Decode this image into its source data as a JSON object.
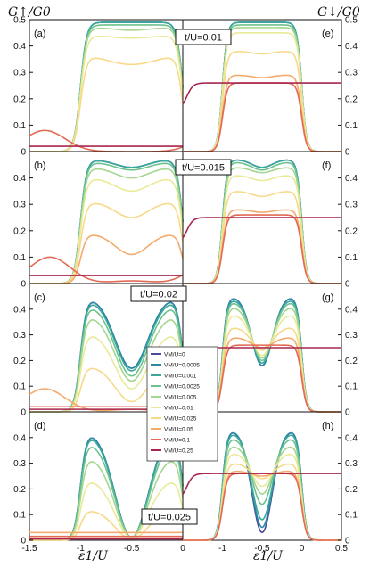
{
  "chart_data": {
    "type": "line",
    "ylabel_left": "G↑/G0",
    "ylabel_right": "G↓/G0",
    "xlabel": "ε1/U",
    "legend": {
      "placement": "center",
      "entries": [
        "VM/U=0",
        "VM/U=0.0005",
        "VM/U=0.001",
        "VM/U=0.0025",
        "VM/U=0.005",
        "VM/U=0.01",
        "VM/U=0.025",
        "VM/U=0.05",
        "VM/U=0.1",
        "VM/U=0.25"
      ],
      "colors": [
        "#4a4a9c",
        "#2a8aa6",
        "#3aa89a",
        "#6cc28e",
        "#a4d690",
        "#e9ea98",
        "#f7d98a",
        "#f5aa6c",
        "#e26a55",
        "#a8264e"
      ]
    },
    "yticks_label_row": [
      "0",
      "0.1",
      "0.2",
      "0.3",
      "0.4"
    ],
    "yticks_label_top": [
      "0",
      "0.1",
      "0.2",
      "0.3",
      "0.4",
      "0.5"
    ],
    "xticks_left": [
      "-1.5",
      "-1",
      "-0.5",
      "0"
    ],
    "xticks_right": [
      "-1.5",
      "-1",
      "-0.5",
      "0",
      "0.5"
    ],
    "rows": [
      {
        "hopping": "t/U=0.01",
        "left": {
          "label": "(a)",
          "ylim": [
            0,
            0.5
          ],
          "xlim": [
            -1.5,
            0
          ],
          "shape": "single",
          "series": [
            {
              "name": "VM/U=0",
              "plateau": 0.49,
              "dip": 0.49,
              "width": 0.15
            },
            {
              "name": "VM/U=0.0005",
              "plateau": 0.49,
              "dip": 0.49,
              "width": 0.15
            },
            {
              "name": "VM/U=0.001",
              "plateau": 0.49,
              "dip": 0.49,
              "width": 0.15
            },
            {
              "name": "VM/U=0.0025",
              "plateau": 0.48,
              "dip": 0.48,
              "width": 0.16
            },
            {
              "name": "VM/U=0.005",
              "plateau": 0.47,
              "dip": 0.46,
              "width": 0.17
            },
            {
              "name": "VM/U=0.01",
              "plateau": 0.44,
              "dip": 0.43,
              "width": 0.19
            },
            {
              "name": "VM/U=0.025",
              "plateau": 0.37,
              "dip": 0.33,
              "width": 0.24
            },
            {
              "name": "VM/U=0.05",
              "peaks": [
                -1.0,
                0.17,
                0.0,
                -0.5,
                0.01
              ],
              "outer": 0.08
            },
            {
              "name": "VM/U=0.1",
              "peaks": [
                -1.35,
                0.08,
                -0.5,
                0.0
              ],
              "outer": 0.04
            },
            {
              "name": "VM/U=0.25",
              "flat": 0.02
            }
          ]
        },
        "right": {
          "label": "(e)",
          "ylim": [
            0,
            0.5
          ],
          "xlim": [
            -1.5,
            0.5
          ],
          "series": [
            {
              "name": "VM/U=0",
              "plateau": 0.49,
              "dip": 0.49
            },
            {
              "name": "VM/U=0.0005",
              "plateau": 0.49,
              "dip": 0.49
            },
            {
              "name": "VM/U=0.001",
              "plateau": 0.49,
              "dip": 0.49
            },
            {
              "name": "VM/U=0.0025",
              "plateau": 0.48,
              "dip": 0.48
            },
            {
              "name": "VM/U=0.005",
              "plateau": 0.47,
              "dip": 0.47
            },
            {
              "name": "VM/U=0.01",
              "plateau": 0.45,
              "dip": 0.45
            },
            {
              "name": "VM/U=0.025",
              "plateau": 0.38,
              "dip": 0.37
            },
            {
              "name": "VM/U=0.05",
              "plateau": 0.29,
              "dip": 0.28
            },
            {
              "name": "VM/U=0.1",
              "plateau": 0.26,
              "dip": 0.26
            },
            {
              "name": "VM/U=0.25",
              "flat": 0.26
            }
          ]
        }
      },
      {
        "hopping": "t/U=0.015",
        "left": {
          "label": "(b)",
          "ylim": [
            0,
            0.5
          ],
          "xlim": [
            -1.5,
            0
          ],
          "series": [
            {
              "name": "VM/U=0",
              "plateau": 0.47,
              "dip": 0.44
            },
            {
              "name": "VM/U=0.0005",
              "plateau": 0.47,
              "dip": 0.44
            },
            {
              "name": "VM/U=0.001",
              "plateau": 0.47,
              "dip": 0.44
            },
            {
              "name": "VM/U=0.0025",
              "plateau": 0.46,
              "dip": 0.43
            },
            {
              "name": "VM/U=0.005",
              "plateau": 0.44,
              "dip": 0.4
            },
            {
              "name": "VM/U=0.01",
              "plateau": 0.4,
              "dip": 0.35
            },
            {
              "name": "VM/U=0.025",
              "plateau": 0.31,
              "dip": 0.25
            },
            {
              "name": "VM/U=0.05",
              "plateau": 0.19,
              "dip": 0.11
            },
            {
              "name": "VM/U=0.1",
              "peaks": [
                -1.3,
                0.1,
                -0.5,
                0.01
              ],
              "outer": 0.05
            },
            {
              "name": "VM/U=0.25",
              "flat": 0.03
            }
          ]
        },
        "right": {
          "label": "(f)",
          "ylim": [
            0,
            0.5
          ],
          "xlim": [
            -1.5,
            0.5
          ],
          "series": [
            {
              "name": "VM/U=0",
              "plateau": 0.47,
              "dip": 0.44
            },
            {
              "name": "VM/U=0.0005",
              "plateau": 0.47,
              "dip": 0.44
            },
            {
              "name": "VM/U=0.001",
              "plateau": 0.47,
              "dip": 0.44
            },
            {
              "name": "VM/U=0.0025",
              "plateau": 0.46,
              "dip": 0.43
            },
            {
              "name": "VM/U=0.005",
              "plateau": 0.44,
              "dip": 0.42
            },
            {
              "name": "VM/U=0.01",
              "plateau": 0.41,
              "dip": 0.39
            },
            {
              "name": "VM/U=0.025",
              "plateau": 0.35,
              "dip": 0.33
            },
            {
              "name": "VM/U=0.05",
              "plateau": 0.28,
              "dip": 0.27
            },
            {
              "name": "VM/U=0.1",
              "plateau": 0.26,
              "dip": 0.26
            },
            {
              "name": "VM/U=0.25",
              "flat": 0.25
            }
          ]
        }
      },
      {
        "hopping": "t/U=0.02",
        "left": {
          "label": "(c)",
          "ylim": [
            0,
            0.5
          ],
          "xlim": [
            -1.5,
            0
          ],
          "series": [
            {
              "name": "VM/U=0",
              "plateau": 0.45,
              "dip": 0.17
            },
            {
              "name": "VM/U=0.0005",
              "plateau": 0.45,
              "dip": 0.17
            },
            {
              "name": "VM/U=0.001",
              "plateau": 0.44,
              "dip": 0.16
            },
            {
              "name": "VM/U=0.0025",
              "plateau": 0.42,
              "dip": 0.14
            },
            {
              "name": "VM/U=0.005",
              "plateau": 0.38,
              "dip": 0.12
            },
            {
              "name": "VM/U=0.01",
              "plateau": 0.31,
              "dip": 0.09
            },
            {
              "name": "VM/U=0.025",
              "plateau": 0.18,
              "dip": 0.04
            },
            {
              "name": "VM/U=0.05",
              "peaks": [
                -1.35,
                0.09,
                -0.5,
                0.01
              ],
              "outer": 0.05
            },
            {
              "name": "VM/U=0.1",
              "flat": 0.02
            },
            {
              "name": "VM/U=0.25",
              "flat": 0.01
            }
          ]
        },
        "right": {
          "label": "(g)",
          "ylim": [
            0,
            0.5
          ],
          "xlim": [
            -1.5,
            0.5
          ],
          "series": [
            {
              "name": "VM/U=0",
              "plateau": 0.45,
              "dip": 0.18
            },
            {
              "name": "VM/U=0.0005",
              "plateau": 0.45,
              "dip": 0.18
            },
            {
              "name": "VM/U=0.001",
              "plateau": 0.44,
              "dip": 0.19
            },
            {
              "name": "VM/U=0.0025",
              "plateau": 0.43,
              "dip": 0.2
            },
            {
              "name": "VM/U=0.005",
              "plateau": 0.41,
              "dip": 0.21
            },
            {
              "name": "VM/U=0.01",
              "plateau": 0.38,
              "dip": 0.22
            },
            {
              "name": "VM/U=0.025",
              "plateau": 0.33,
              "dip": 0.24
            },
            {
              "name": "VM/U=0.05",
              "plateau": 0.29,
              "dip": 0.25
            },
            {
              "name": "VM/U=0.1",
              "plateau": 0.26,
              "dip": 0.26
            },
            {
              "name": "VM/U=0.25",
              "flat": 0.25
            }
          ]
        }
      },
      {
        "hopping": "t/U=0.025",
        "left": {
          "label": "(d)",
          "ylim": [
            0,
            0.5
          ],
          "xlim": [
            -1.5,
            0
          ],
          "series": [
            {
              "name": "VM/U=0",
              "plateau": 0.43,
              "dip": 0.01
            },
            {
              "name": "VM/U=0.0005",
              "plateau": 0.43,
              "dip": 0.01
            },
            {
              "name": "VM/U=0.001",
              "plateau": 0.42,
              "dip": 0.01
            },
            {
              "name": "VM/U=0.0025",
              "plateau": 0.39,
              "dip": 0.01
            },
            {
              "name": "VM/U=0.005",
              "plateau": 0.33,
              "dip": 0.01
            },
            {
              "name": "VM/U=0.01",
              "plateau": 0.24,
              "dip": 0.01
            },
            {
              "name": "VM/U=0.025",
              "plateau": 0.12,
              "dip": 0.005
            },
            {
              "name": "VM/U=0.05",
              "flat": 0.03
            },
            {
              "name": "VM/U=0.1",
              "flat": 0.015
            },
            {
              "name": "VM/U=0.25",
              "flat": 0.005
            }
          ]
        },
        "right": {
          "label": "(h)",
          "ylim": [
            0,
            0.5
          ],
          "xlim": [
            -1.5,
            0.5
          ],
          "series": [
            {
              "name": "VM/U=0",
              "plateau": 0.43,
              "dip": 0.03
            },
            {
              "name": "VM/U=0.0005",
              "plateau": 0.43,
              "dip": 0.05
            },
            {
              "name": "VM/U=0.001",
              "plateau": 0.42,
              "dip": 0.08
            },
            {
              "name": "VM/U=0.0025",
              "plateau": 0.4,
              "dip": 0.14
            },
            {
              "name": "VM/U=0.005",
              "plateau": 0.37,
              "dip": 0.18
            },
            {
              "name": "VM/U=0.01",
              "plateau": 0.34,
              "dip": 0.21
            },
            {
              "name": "VM/U=0.025",
              "plateau": 0.3,
              "dip": 0.24
            },
            {
              "name": "VM/U=0.05",
              "plateau": 0.27,
              "dip": 0.25
            },
            {
              "name": "VM/U=0.1",
              "plateau": 0.26,
              "dip": 0.26
            },
            {
              "name": "VM/U=0.25",
              "flat": 0.26
            }
          ]
        }
      }
    ]
  }
}
